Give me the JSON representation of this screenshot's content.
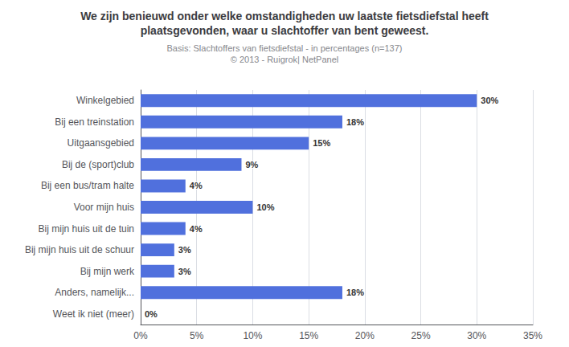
{
  "chart_data": {
    "type": "bar",
    "orientation": "horizontal",
    "title": "We zijn benieuwd onder welke omstandigheden uw laatste fietsdiefstal heeft\nplaatsgevonden, waar u slachtoffer van bent geweest.",
    "subtitle": "Basis: Slachtoffers van fietsdiefstal - in percentages (n=137)\n© 2013 - Ruigrok| NetPanel",
    "categories": [
      "Winkelgebied",
      "Bij een treinstation",
      "Uitgaansgebied",
      "Bij de (sport)club",
      "Bij een bus/tram halte",
      "Voor mijn huis",
      "Bij mijn huis uit de tuin",
      "Bij mijn huis uit de schuur",
      "Bij mijn werk",
      "Anders, namelijk...",
      "Weet ik niet (meer)"
    ],
    "values": [
      30,
      18,
      15,
      9,
      4,
      10,
      4,
      3,
      3,
      18,
      0
    ],
    "value_labels": [
      "30%",
      "18%",
      "15%",
      "9%",
      "4%",
      "10%",
      "4%",
      "3%",
      "3%",
      "18%",
      "0%"
    ],
    "data_labels": true,
    "xlim": [
      0,
      35
    ],
    "xticks": [
      {
        "value": 0,
        "label": "0%"
      },
      {
        "value": 5,
        "label": "5%"
      },
      {
        "value": 10,
        "label": "10%"
      },
      {
        "value": 15,
        "label": "15%"
      },
      {
        "value": 20,
        "label": "20%"
      },
      {
        "value": 25,
        "label": "25%"
      },
      {
        "value": 30,
        "label": "30%"
      },
      {
        "value": 35,
        "label": "35%"
      }
    ],
    "grid": true
  }
}
